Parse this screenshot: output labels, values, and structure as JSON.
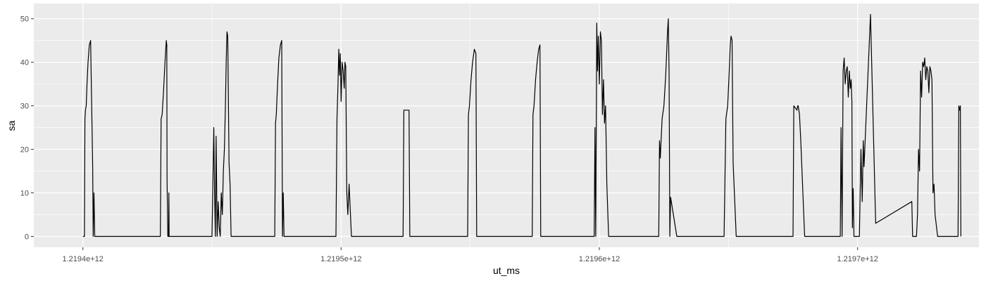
{
  "chart_data": {
    "type": "line",
    "title": "",
    "xlabel": "ut_ms",
    "ylabel": "sa",
    "xlim": [
      1219381000000,
      1219747000000
    ],
    "ylim": [
      -2.5,
      53.5
    ],
    "x_ticks": [
      1219400000000,
      1219500000000,
      1219600000000,
      1219700000000
    ],
    "x_tick_labels": [
      "1.2194e+12",
      "1.2195e+12",
      "1.2196e+12",
      "1.2197e+12"
    ],
    "y_ticks": [
      0,
      10,
      20,
      30,
      40,
      50
    ],
    "y_tick_labels": [
      "0",
      "10",
      "20",
      "30",
      "40",
      "50"
    ],
    "grid": true,
    "legend": "none",
    "colors": {
      "panel": "#ebebeb",
      "grid": "#ffffff",
      "line": "#000000"
    },
    "series": [
      {
        "x": [
          1219400000000,
          1219400600000,
          1219400800000,
          1219401000000,
          1219401300000,
          1219401600000,
          1219402000000,
          1219402500000,
          1219403000000,
          1219403800000,
          1219404000000,
          1219404300000,
          1219404600000,
          1219404900000,
          1219405000000,
          1219430000000,
          1219430300000,
          1219430700000,
          1219431200000,
          1219431800000,
          1219432300000,
          1219432500000,
          1219432600000,
          1219432900000,
          1219433200000,
          1219433300000,
          1219433400000,
          1219433500000,
          1219435500000,
          1219450000000,
          1219450700000,
          1219451000000,
          1219451300000,
          1219451600000,
          1219452000000,
          1219452400000,
          1219452800000,
          1219453200000,
          1219453600000,
          1219454000000,
          1219454400000,
          1219454800000,
          1219455200000,
          1219455500000,
          1219455800000,
          1219456100000,
          1219456600000,
          1219457000000,
          1219457400000,
          1219457800000,
          1219458000000,
          1219458300000,
          1219458600000,
          1219459000000,
          1219461000000,
          1219474300000,
          1219474600000,
          1219474900000,
          1219475400000,
          1219475900000,
          1219476500000,
          1219477000000,
          1219477300000,
          1219477600000,
          1219477900000,
          1219479000000,
          1219498000000,
          1219498400000,
          1219498800000,
          1219499100000,
          1219499400000,
          1219499700000,
          1219500000000,
          1219500400000,
          1219500800000,
          1219501200000,
          1219501500000,
          1219501800000,
          1219502200000,
          1219502600000,
          1219503100000,
          1219504000000,
          1219524000000,
          1219524300000,
          1219525300000,
          1219526300000,
          1219526600000,
          1219527000000,
          1219549000000,
          1219549300000,
          1219549700000,
          1219550300000,
          1219550900000,
          1219551600000,
          1219552200000,
          1219552500000,
          1219552800000,
          1219555000000,
          1219574000000,
          1219574300000,
          1219574700000,
          1219575300000,
          1219575900000,
          1219576500000,
          1219577000000,
          1219577300000,
          1219577600000,
          1219579000000,
          1219598000000,
          1219598300000,
          1219598600000,
          1219599000000,
          1219599300000,
          1219599600000,
          1219600000000,
          1219600400000,
          1219600800000,
          1219601200000,
          1219601600000,
          1219602000000,
          1219602400000,
          1219602600000,
          1219602900000,
          1219603300000,
          1219603600000,
          1219604000000,
          1219605000000,
          1219623000000,
          1219623300000,
          1219623600000,
          1219624300000,
          1219625000000,
          1219625700000,
          1219626400000,
          1219626700000,
          1219627000000,
          1219627300000,
          1219627600000,
          1219630000000,
          1219648000000,
          1219648300000,
          1219649000000,
          1219649700000,
          1219650300000,
          1219650700000,
          1219651000000,
          1219651400000,
          1219651800000,
          1219653000000,
          1219673000000,
          1219673300000,
          1219675000000,
          1219675300000,
          1219676500000,
          1219676800000,
          1219677000000,
          1219677500000,
          1219678000000,
          1219679500000,
          1219680000000,
          1219687000000,
          1219693000000,
          1219693300000,
          1219693600000,
          1219694000000,
          1219694400000,
          1219694800000,
          1219695200000,
          1219695600000,
          1219696000000,
          1219696400000,
          1219696800000,
          1219697200000,
          1219697500000,
          1219697800000,
          1219698000000,
          1219698300000,
          1219698600000,
          1219700000000,
          1219700300000,
          1219700700000,
          1219701300000,
          1219701800000,
          1219702200000,
          1219702500000,
          1219705000000,
          1219707000000,
          1219721000000,
          1219721300000,
          1219721600000,
          1219722000000,
          1219722400000,
          1219722800000,
          1219723200000,
          1219723600000,
          1219724000000,
          1219724400000,
          1219724800000,
          1219725200000,
          1219725600000,
          1219726000000,
          1219726400000,
          1219726800000,
          1219727200000,
          1219727600000,
          1219728000000,
          1219728400000,
          1219728800000,
          1219729200000,
          1219729600000,
          1219730000000,
          1219731000000,
          1219738000000,
          1219738300000,
          1219738600000,
          1219738900000,
          1219739200000,
          1219739500000,
          1219739800000,
          1219740000000
        ],
        "y": [
          0,
          0,
          27,
          29,
          30,
          35,
          40,
          44,
          45,
          16,
          0,
          10,
          0,
          0,
          0,
          0,
          27,
          28,
          33,
          40,
          45,
          44,
          13,
          0,
          0,
          10,
          0,
          0,
          0,
          0,
          25,
          10,
          0,
          23,
          0,
          8,
          2,
          0,
          10,
          5,
          15,
          20,
          30,
          40,
          47,
          46,
          17,
          12,
          0,
          0,
          0,
          0,
          0,
          0,
          0,
          0,
          26,
          28,
          35,
          41,
          44,
          45,
          0,
          10,
          0,
          0,
          0,
          27,
          35,
          43,
          37,
          42,
          31,
          40,
          38,
          34,
          40,
          39,
          10,
          5,
          12,
          0,
          0,
          29,
          29,
          29,
          0,
          0,
          0,
          28,
          30,
          36,
          40,
          43,
          42,
          0,
          0,
          0,
          0,
          28,
          30,
          36,
          40,
          43,
          44,
          0,
          0,
          0,
          0,
          25,
          0,
          49,
          38,
          46,
          35,
          47,
          45,
          28,
          36,
          26,
          30,
          23,
          12,
          5,
          0,
          0,
          0,
          0,
          22,
          18,
          27,
          30,
          37,
          47,
          50,
          38,
          0,
          9,
          0,
          0,
          0,
          27,
          30,
          38,
          44,
          46,
          45,
          17,
          0,
          0,
          0,
          0,
          30,
          29,
          30,
          30,
          28,
          22,
          0,
          0,
          0,
          0,
          0,
          25,
          0,
          38,
          41,
          35,
          38,
          39,
          32,
          38,
          34,
          36,
          31,
          2,
          11,
          0,
          0,
          0,
          0,
          20,
          8,
          22,
          16,
          51,
          3,
          8,
          0,
          0,
          0,
          0,
          0,
          5,
          20,
          15,
          38,
          32,
          40,
          39,
          41,
          36,
          39,
          38,
          33,
          39,
          38,
          36,
          10,
          12,
          5,
          0,
          0,
          0,
          0,
          0,
          30,
          29,
          30,
          0
        ]
      }
    ]
  }
}
